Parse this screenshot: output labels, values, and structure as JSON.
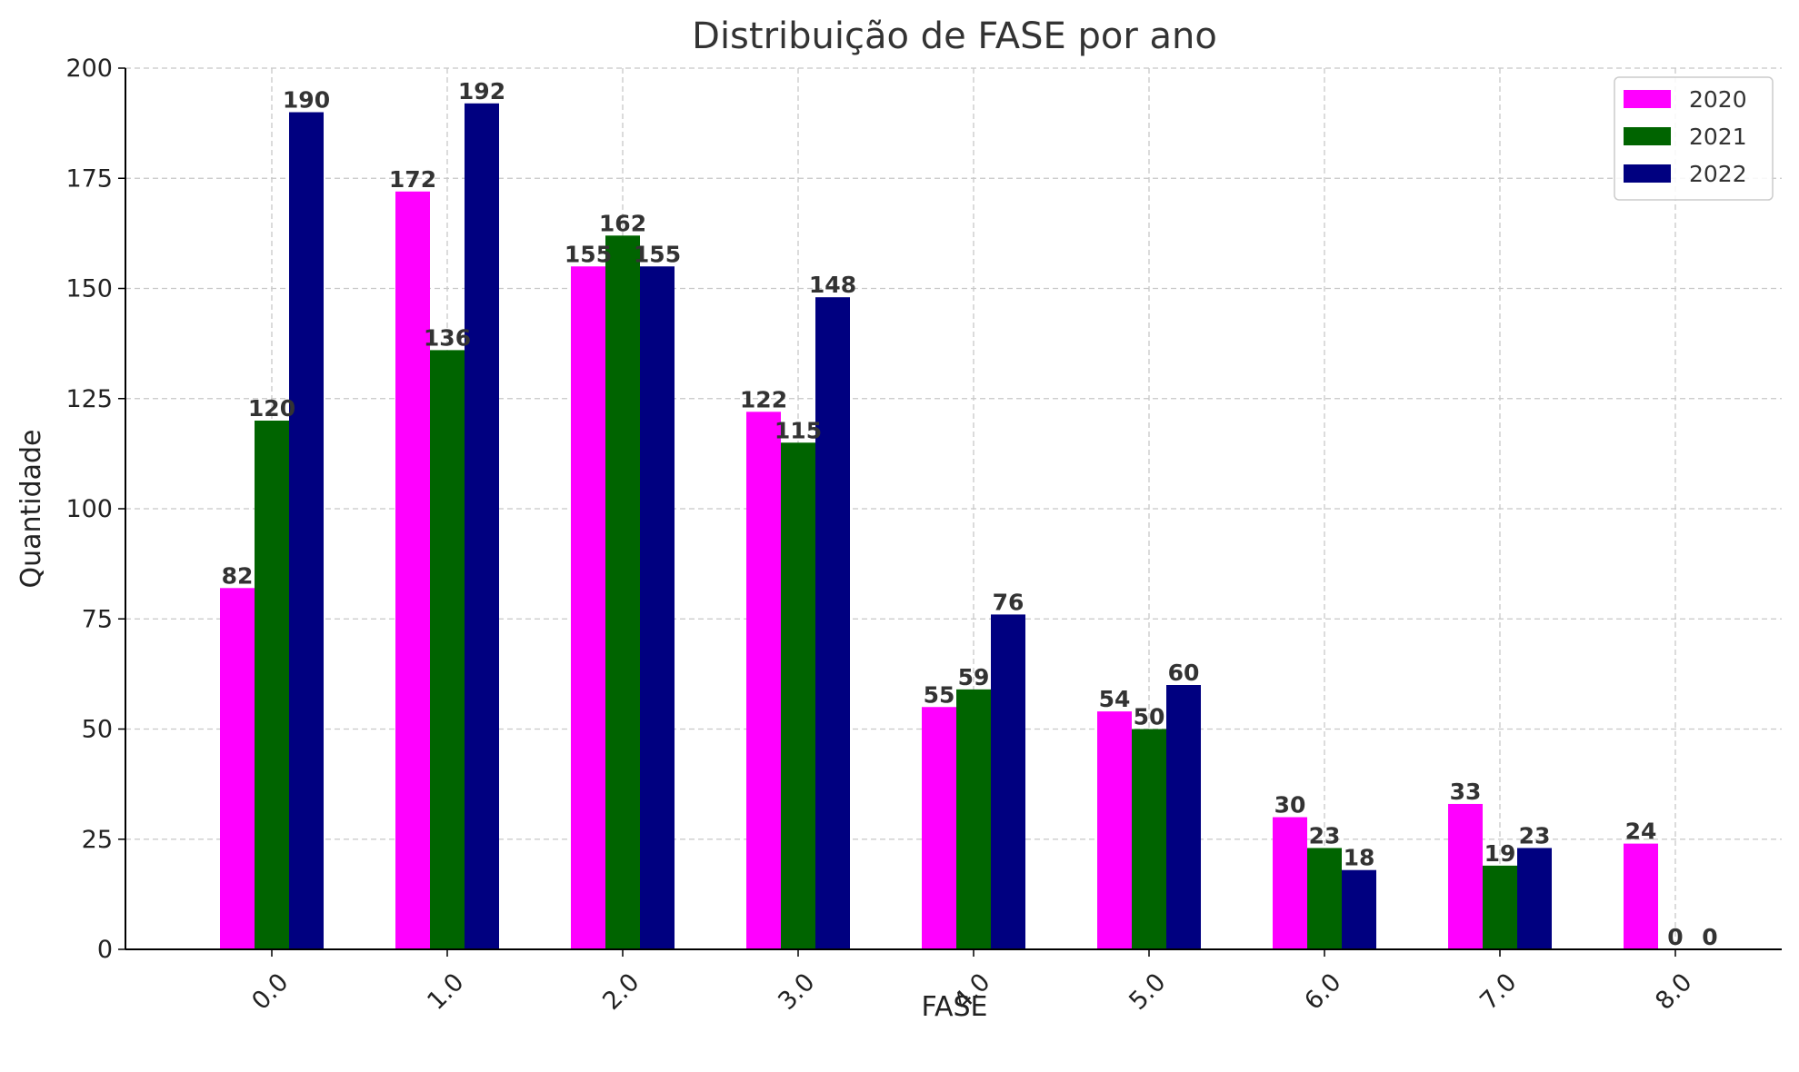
{
  "chart_data": {
    "type": "bar",
    "title": "Distribuição de FASE por ano",
    "xlabel": "FASE",
    "ylabel": "Quantidade",
    "categories": [
      "0.0",
      "1.0",
      "2.0",
      "3.0",
      "4.0",
      "5.0",
      "6.0",
      "7.0",
      "8.0"
    ],
    "series": [
      {
        "name": "2020",
        "color": "#ff00ff",
        "values": [
          82,
          172,
          155,
          122,
          55,
          54,
          30,
          33,
          24
        ]
      },
      {
        "name": "2021",
        "color": "#006400",
        "values": [
          120,
          136,
          162,
          115,
          59,
          50,
          23,
          19,
          0
        ]
      },
      {
        "name": "2022",
        "color": "#000080",
        "values": [
          190,
          192,
          155,
          148,
          76,
          60,
          18,
          23,
          0
        ]
      }
    ],
    "ylim": [
      0,
      200
    ],
    "yticks": [
      0,
      25,
      50,
      75,
      100,
      125,
      150,
      175,
      200
    ],
    "grid": true,
    "legend_position": "top-right",
    "data_labels": true
  }
}
